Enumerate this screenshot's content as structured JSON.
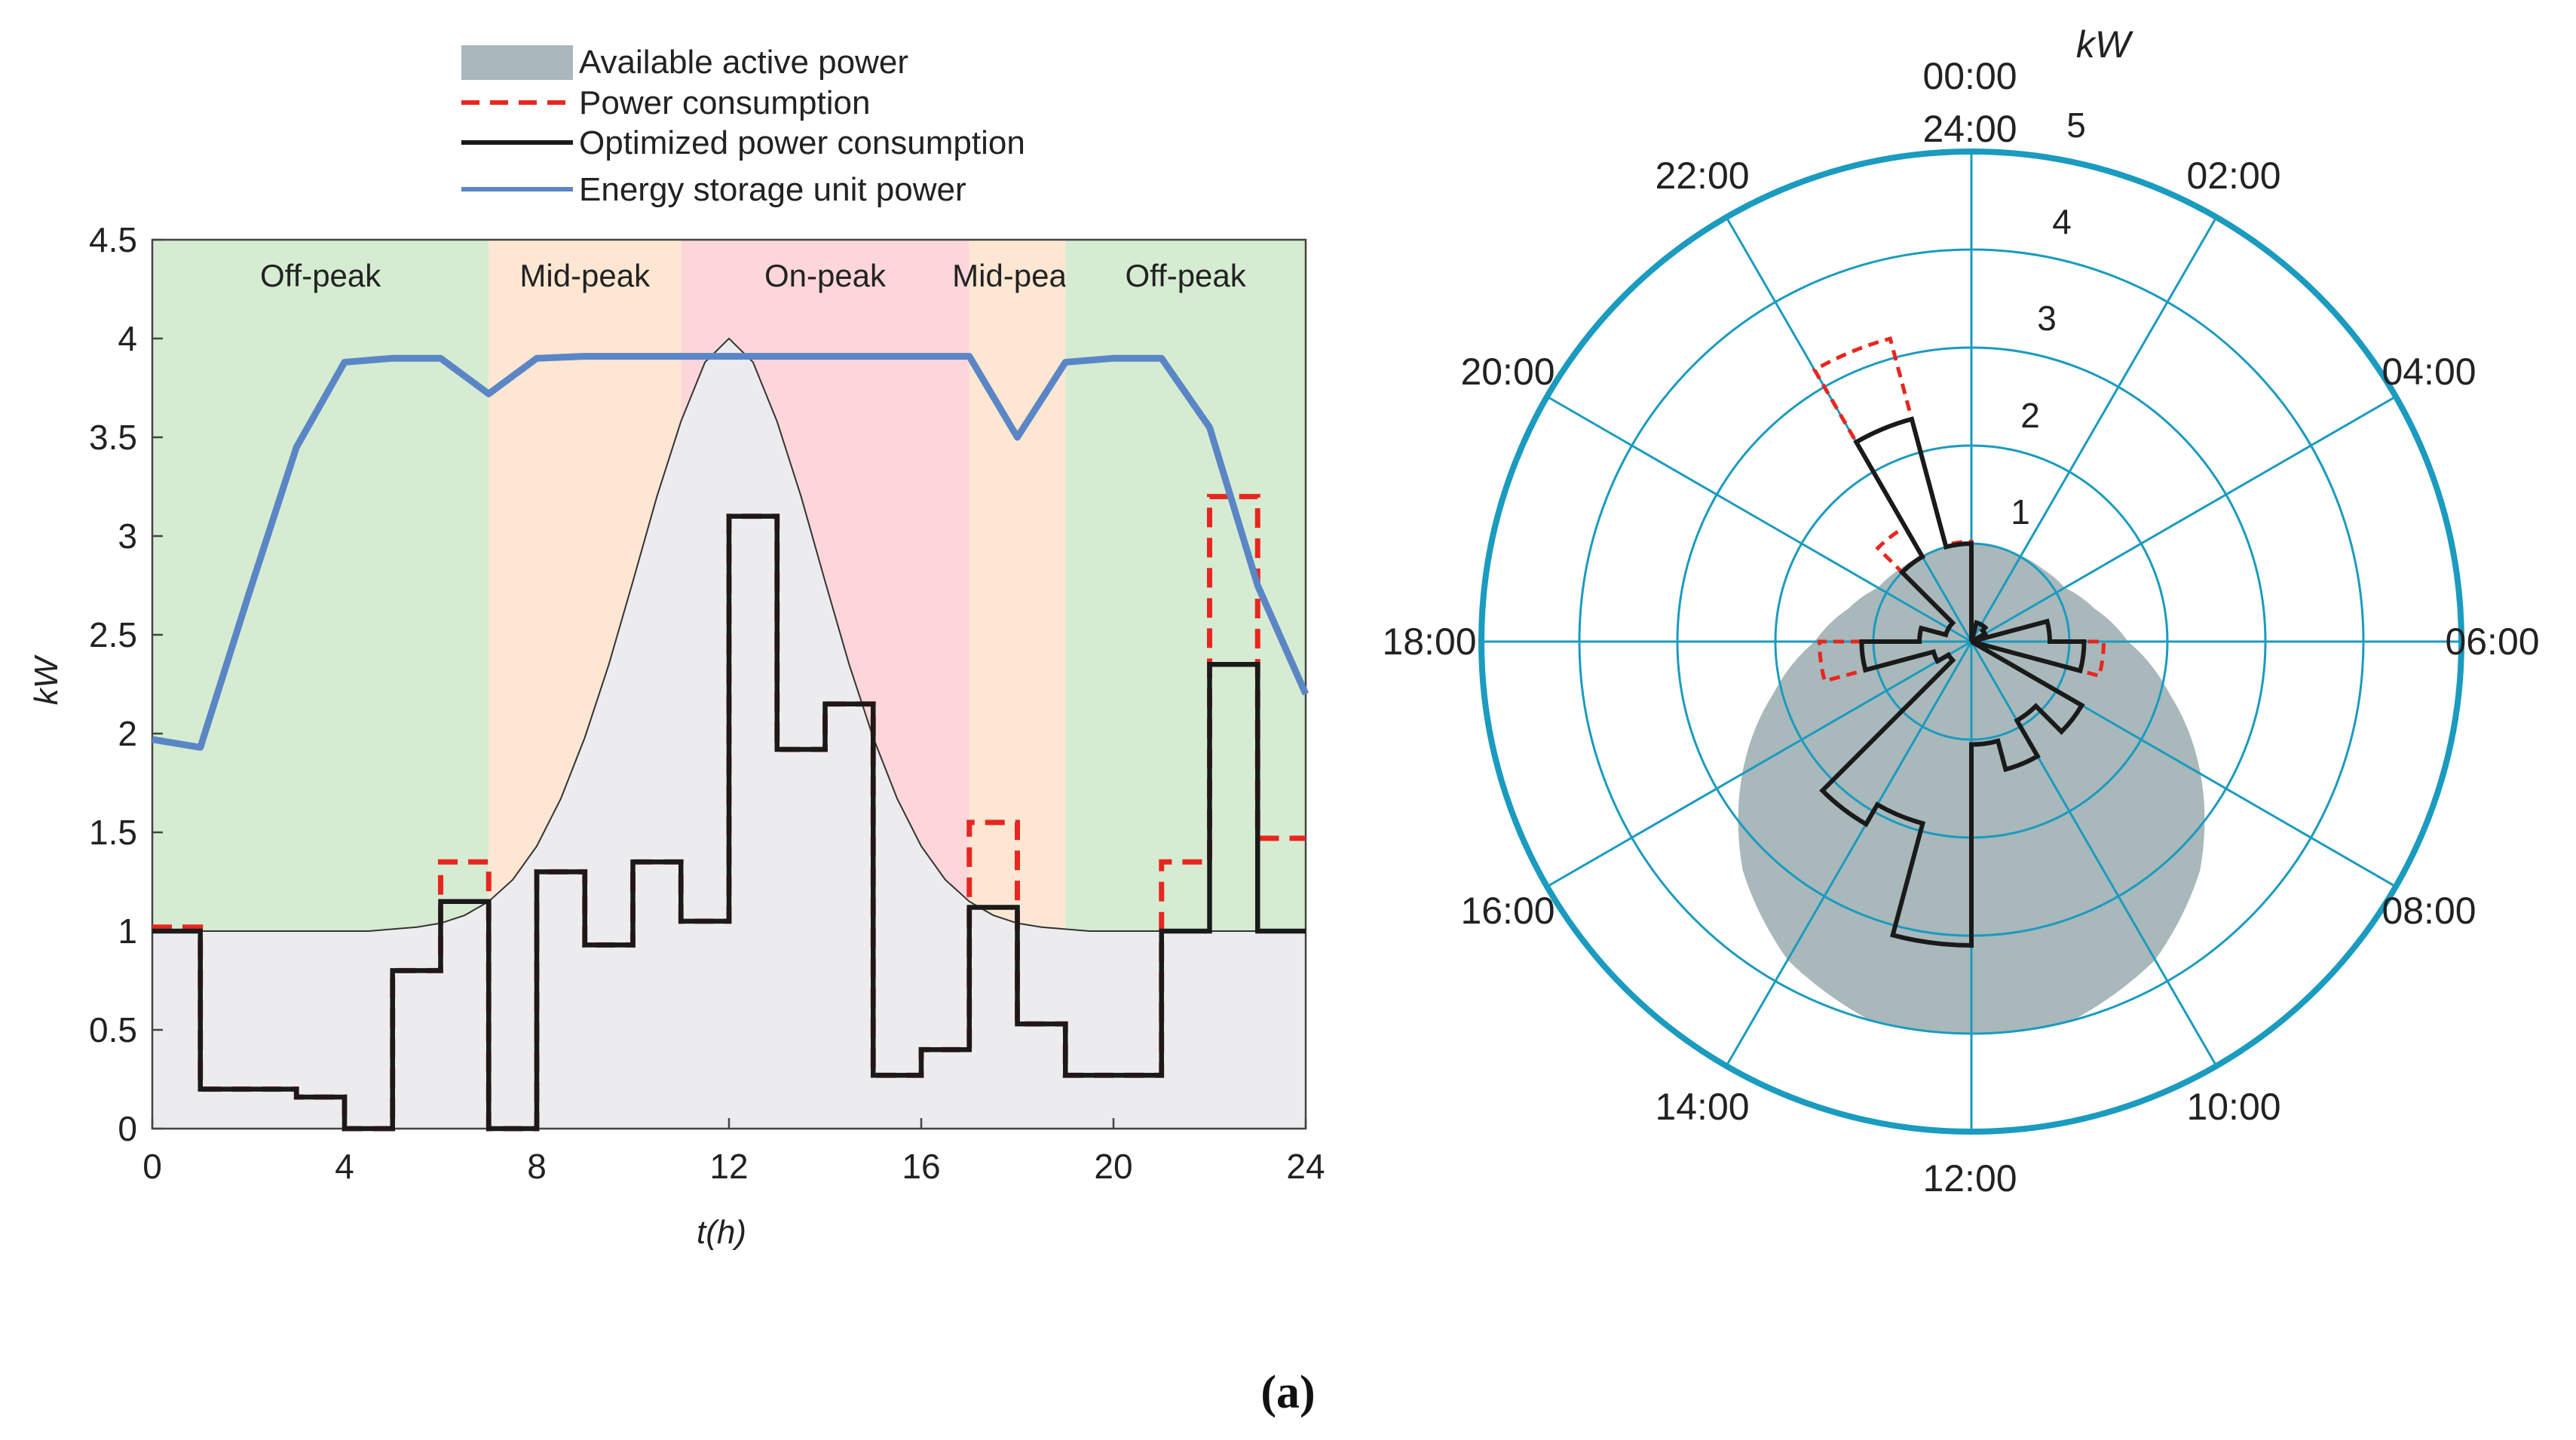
{
  "caption": "(a)",
  "colors": {
    "available": "#a9b8ba",
    "available_left_fill": "#ececef",
    "consumption": "#e8261f",
    "optimized": "#1a1a1a",
    "storage": "#5b86c6",
    "offpeak": "#d6ecd2",
    "midpeak": "#fde7d2",
    "onpeak": "#fcd6d9",
    "polar_grid": "#1a9bbf",
    "polar_fill": "#a9b8ba"
  },
  "legend": [
    {
      "label": "Available active power",
      "style": "patch"
    },
    {
      "label": "Power consumption",
      "style": "dashed"
    },
    {
      "label": "Optimized power consumption",
      "style": "solid-black"
    },
    {
      "label": "Energy storage unit power",
      "style": "solid-blue"
    }
  ],
  "chart_data": [
    {
      "type": "line",
      "title": "",
      "xlabel": "t(h)",
      "ylabel": "kW",
      "xlim": [
        0,
        24
      ],
      "ylim": [
        0,
        4.5
      ],
      "xticks": [
        0,
        4,
        8,
        12,
        16,
        20,
        24
      ],
      "yticks": [
        0,
        0.5,
        1,
        1.5,
        2,
        2.5,
        3,
        3.5,
        4,
        4.5
      ],
      "ytick_labels": [
        "0",
        "0.5",
        "1",
        "1.5",
        "2",
        "2.5",
        "3",
        "3.5",
        "4",
        "4.5"
      ],
      "periods": [
        {
          "label": "Off-peak",
          "start": 0,
          "end": 7,
          "kind": "offpeak"
        },
        {
          "label": "Mid-peak",
          "start": 7,
          "end": 11,
          "kind": "midpeak"
        },
        {
          "label": "On-peak",
          "start": 11,
          "end": 17,
          "kind": "onpeak"
        },
        {
          "label": "Mid-peak",
          "start": 17,
          "end": 19,
          "kind": "midpeak"
        },
        {
          "label": "Off-peak",
          "start": 19,
          "end": 24,
          "kind": "offpeak"
        }
      ],
      "series": [
        {
          "name": "Available active power",
          "kind": "area",
          "x": [
            0,
            0.5,
            1,
            1.5,
            2,
            2.5,
            3,
            3.5,
            4,
            4.5,
            5,
            5.5,
            6,
            6.5,
            7,
            7.5,
            8,
            8.5,
            9,
            9.5,
            10,
            10.5,
            11,
            11.5,
            12,
            12.5,
            13,
            13.5,
            14,
            14.5,
            15,
            15.5,
            16,
            16.5,
            17,
            17.5,
            18,
            18.5,
            19,
            19.5,
            20,
            20.5,
            21,
            21.5,
            22,
            22.5,
            23,
            23.5,
            24
          ],
          "values": [
            1.0,
            1.0,
            1.0,
            1.0,
            1.0,
            1.0,
            1.0,
            1.0,
            1.0,
            1.0,
            1.01,
            1.02,
            1.04,
            1.08,
            1.15,
            1.26,
            1.43,
            1.67,
            1.98,
            2.35,
            2.77,
            3.2,
            3.58,
            3.88,
            4.0,
            3.88,
            3.58,
            3.2,
            2.77,
            2.35,
            1.98,
            1.67,
            1.43,
            1.26,
            1.15,
            1.08,
            1.04,
            1.02,
            1.01,
            1.0,
            1.0,
            1.0,
            1.0,
            1.0,
            1.0,
            1.0,
            1.0,
            1.0,
            1.0
          ]
        },
        {
          "name": "Power consumption",
          "kind": "step",
          "hours": [
            0,
            1,
            2,
            3,
            4,
            5,
            6,
            7,
            8,
            9,
            10,
            11,
            12,
            13,
            14,
            15,
            16,
            17,
            18,
            19,
            20,
            21,
            22,
            23
          ],
          "values": [
            1.02,
            0.2,
            0.2,
            0.16,
            0.0,
            0.8,
            1.35,
            0.0,
            1.3,
            0.93,
            1.35,
            1.05,
            3.1,
            1.92,
            2.15,
            0.27,
            0.4,
            1.55,
            0.53,
            0.27,
            0.27,
            1.35,
            3.2,
            1.47
          ]
        },
        {
          "name": "Optimized power consumption",
          "kind": "step",
          "hours": [
            0,
            1,
            2,
            3,
            4,
            5,
            6,
            7,
            8,
            9,
            10,
            11,
            12,
            13,
            14,
            15,
            16,
            17,
            18,
            19,
            20,
            21,
            22,
            23
          ],
          "values": [
            1.0,
            0.2,
            0.2,
            0.16,
            0.0,
            0.8,
            1.15,
            0.0,
            1.3,
            0.93,
            1.35,
            1.05,
            3.1,
            1.92,
            2.15,
            0.27,
            0.4,
            1.12,
            0.53,
            0.27,
            0.27,
            1.0,
            2.35,
            1.0
          ]
        },
        {
          "name": "Energy storage unit power",
          "kind": "line",
          "x": [
            0,
            1,
            2,
            3,
            4,
            5,
            6,
            7,
            8,
            9,
            10,
            11,
            12,
            13,
            14,
            15,
            16,
            17,
            18,
            19,
            20,
            21,
            22,
            23,
            24
          ],
          "values": [
            1.97,
            1.93,
            2.7,
            3.45,
            3.88,
            3.9,
            3.9,
            3.72,
            3.9,
            3.91,
            3.91,
            3.91,
            3.91,
            3.91,
            3.91,
            3.91,
            3.91,
            3.91,
            3.5,
            3.88,
            3.9,
            3.9,
            3.55,
            2.75,
            2.2
          ]
        }
      ]
    },
    {
      "type": "polar",
      "title": "",
      "radial_unit": "kW",
      "rlim": [
        0,
        5
      ],
      "rticks": [
        1,
        2,
        3,
        4,
        5
      ],
      "rtick_labels": [
        "1",
        "2",
        "3",
        "4",
        "5"
      ],
      "angle_labels": [
        {
          "hour": 0,
          "label": "00:00"
        },
        {
          "hour": 0,
          "label": "24:00"
        },
        {
          "hour": 2,
          "label": "02:00"
        },
        {
          "hour": 4,
          "label": "04:00"
        },
        {
          "hour": 6,
          "label": "06:00"
        },
        {
          "hour": 8,
          "label": "08:00"
        },
        {
          "hour": 10,
          "label": "10:00"
        },
        {
          "hour": 12,
          "label": "12:00"
        },
        {
          "hour": 14,
          "label": "14:00"
        },
        {
          "hour": 16,
          "label": "16:00"
        },
        {
          "hour": 18,
          "label": "18:00"
        },
        {
          "hour": 20,
          "label": "20:00"
        },
        {
          "hour": 22,
          "label": "22:00"
        }
      ],
      "series": [
        {
          "name": "Available active power",
          "kind": "area",
          "hours": [
            0,
            1,
            2,
            3,
            4,
            5,
            6,
            7,
            8,
            9,
            10,
            11,
            12,
            13,
            14,
            15,
            16,
            17,
            18,
            19,
            20,
            21,
            22,
            23
          ],
          "values": [
            1.0,
            1.0,
            1.01,
            1.04,
            1.1,
            1.3,
            1.6,
            2.1,
            2.7,
            3.3,
            3.75,
            4.0,
            4.0,
            4.0,
            3.75,
            3.3,
            2.7,
            2.1,
            1.6,
            1.3,
            1.1,
            1.04,
            1.01,
            1.0
          ]
        },
        {
          "name": "Power consumption",
          "kind": "step",
          "hours": [
            0,
            1,
            2,
            3,
            4,
            5,
            6,
            7,
            8,
            9,
            10,
            11,
            12,
            13,
            14,
            15,
            16,
            17,
            18,
            19,
            20,
            21,
            22,
            23
          ],
          "values": [
            0.0,
            0.2,
            0.2,
            0.16,
            0.0,
            0.8,
            1.35,
            0.0,
            1.3,
            0.93,
            1.35,
            1.05,
            3.1,
            1.92,
            2.15,
            0.27,
            0.4,
            1.55,
            0.53,
            0.27,
            0.27,
            1.35,
            3.2,
            1.02
          ]
        },
        {
          "name": "Optimized power consumption",
          "kind": "step",
          "hours": [
            0,
            1,
            2,
            3,
            4,
            5,
            6,
            7,
            8,
            9,
            10,
            11,
            12,
            13,
            14,
            15,
            16,
            17,
            18,
            19,
            20,
            21,
            22,
            23
          ],
          "values": [
            0.0,
            0.2,
            0.2,
            0.16,
            0.0,
            0.8,
            1.15,
            0.0,
            1.3,
            0.93,
            1.35,
            1.05,
            3.1,
            1.92,
            2.15,
            0.27,
            0.4,
            1.12,
            0.53,
            0.27,
            0.27,
            1.0,
            2.35,
            1.0
          ]
        }
      ]
    }
  ]
}
